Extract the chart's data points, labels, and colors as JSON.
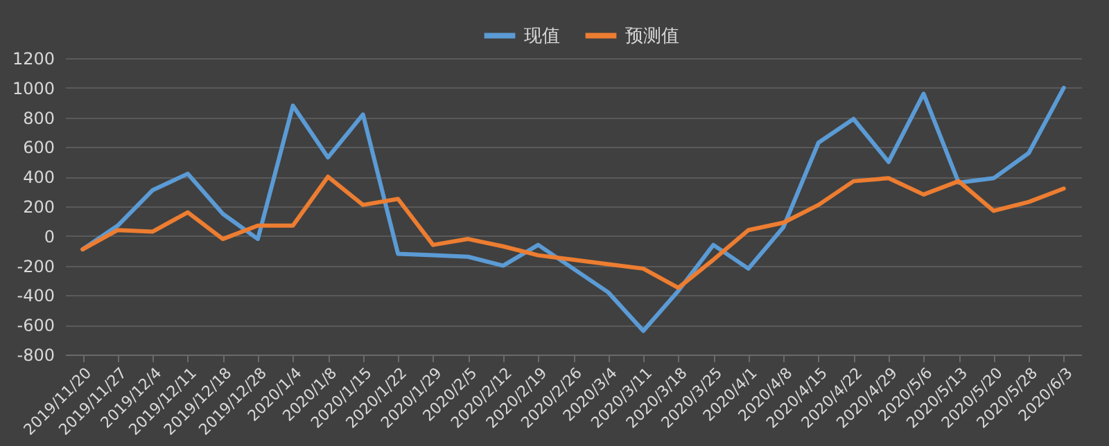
{
  "chart_data": {
    "type": "line",
    "categories": [
      "2019/11/20",
      "2019/11/27",
      "2019/12/4",
      "2019/12/11",
      "2019/12/18",
      "2019/12/28",
      "2020/1/4",
      "2020/1/8",
      "2020/1/15",
      "2020/1/22",
      "2020/1/29",
      "2020/2/5",
      "2020/2/12",
      "2020/2/19",
      "2020/2/26",
      "2020/3/4",
      "2020/3/11",
      "2020/3/18",
      "2020/3/25",
      "2020/4/1",
      "2020/4/8",
      "2020/4/15",
      "2020/4/22",
      "2020/4/29",
      "2020/5/6",
      "2020/5/13",
      "2020/5/20",
      "2020/5/28",
      "2020/6/3"
    ],
    "series": [
      {
        "name": "现值",
        "color": "#5b9bd5",
        "values": [
          -90,
          70,
          310,
          420,
          150,
          -20,
          880,
          530,
          820,
          -120,
          -130,
          -140,
          -200,
          -60,
          -220,
          -380,
          -640,
          -370,
          -60,
          -220,
          60,
          630,
          790,
          500,
          960,
          360,
          390,
          560,
          1000
        ]
      },
      {
        "name": "预测值",
        "color": "#ed7d31",
        "values": [
          -90,
          40,
          30,
          160,
          -20,
          70,
          70,
          400,
          210,
          250,
          -60,
          -20,
          -70,
          -130,
          -160,
          -190,
          -220,
          -350,
          -160,
          40,
          90,
          210,
          370,
          390,
          280,
          370,
          170,
          230,
          320
        ]
      }
    ],
    "ylim": [
      -800,
      1200
    ],
    "yticks": [
      -800,
      -600,
      -400,
      -200,
      0,
      200,
      400,
      600,
      800,
      1000,
      1200
    ],
    "grid": "y",
    "legend": "top",
    "line_style": "solid"
  }
}
